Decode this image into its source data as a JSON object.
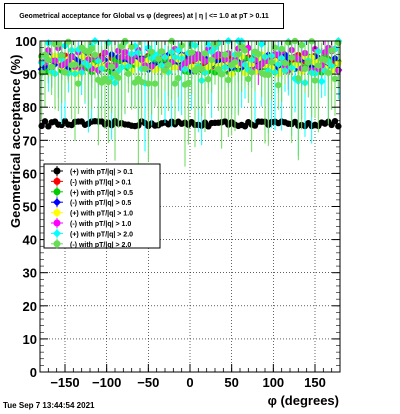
{
  "chart_data": {
    "type": "scatter",
    "title": "Geometrical acceptance for Global vs φ (degrees) at | η | <= 1.0 at pT > 0.11",
    "xlabel": "φ (degrees)",
    "ylabel": "Geometrical acceptance (%)",
    "xlim": [
      -180,
      180
    ],
    "ylim": [
      0,
      100
    ],
    "x_ticks": [
      -150,
      -100,
      -50,
      0,
      50,
      100,
      150
    ],
    "x_tick_labels": [
      "−150",
      "−100",
      "−50",
      "0",
      "50",
      "100",
      "150"
    ],
    "y_ticks": [
      0,
      10,
      20,
      30,
      40,
      50,
      60,
      70,
      80,
      90,
      100
    ],
    "grid": true,
    "legend_position": "left-middle",
    "series": [
      {
        "name": "(+) with pT/|q| > 0.1",
        "color": "#000000",
        "marker": "circle",
        "value": 75.0,
        "spread": 0.8,
        "err": 0.8
      },
      {
        "name": "(-) with pT/|q| > 0.1",
        "color": "#ff0000",
        "marker": "circle",
        "value": 94.0,
        "spread": 2.0,
        "err": 3
      },
      {
        "name": "(+) with pT/|q| > 0.5",
        "color": "#00cc00",
        "marker": "circle",
        "value": 93.0,
        "spread": 2.5,
        "err": 4
      },
      {
        "name": "(-) with pT/|q| > 0.5",
        "color": "#0000ff",
        "marker": "diamond",
        "value": 93.5,
        "spread": 2.5,
        "err": 4
      },
      {
        "name": "(+) with pT/|q| > 1.0",
        "color": "#ffff00",
        "marker": "circle",
        "value": 93.0,
        "spread": 3.0,
        "err": 6
      },
      {
        "name": "(-) with pT/|q| > 1.0",
        "color": "#ff00ff",
        "marker": "circle",
        "value": 94.5,
        "spread": 3.5,
        "err": 6
      },
      {
        "name": "(+) with pT/|q| > 2.0",
        "color": "#00ffff",
        "marker": "diamond",
        "value": 94.0,
        "spread": 7.0,
        "err": 12
      },
      {
        "name": "(-) with pT/|q| > 2.0",
        "color": "#66dd55",
        "marker": "circle",
        "value": 93.5,
        "spread": 7.0,
        "err": 14
      }
    ]
  },
  "timestamp": "Tue Sep  7 13:44:54 2021"
}
